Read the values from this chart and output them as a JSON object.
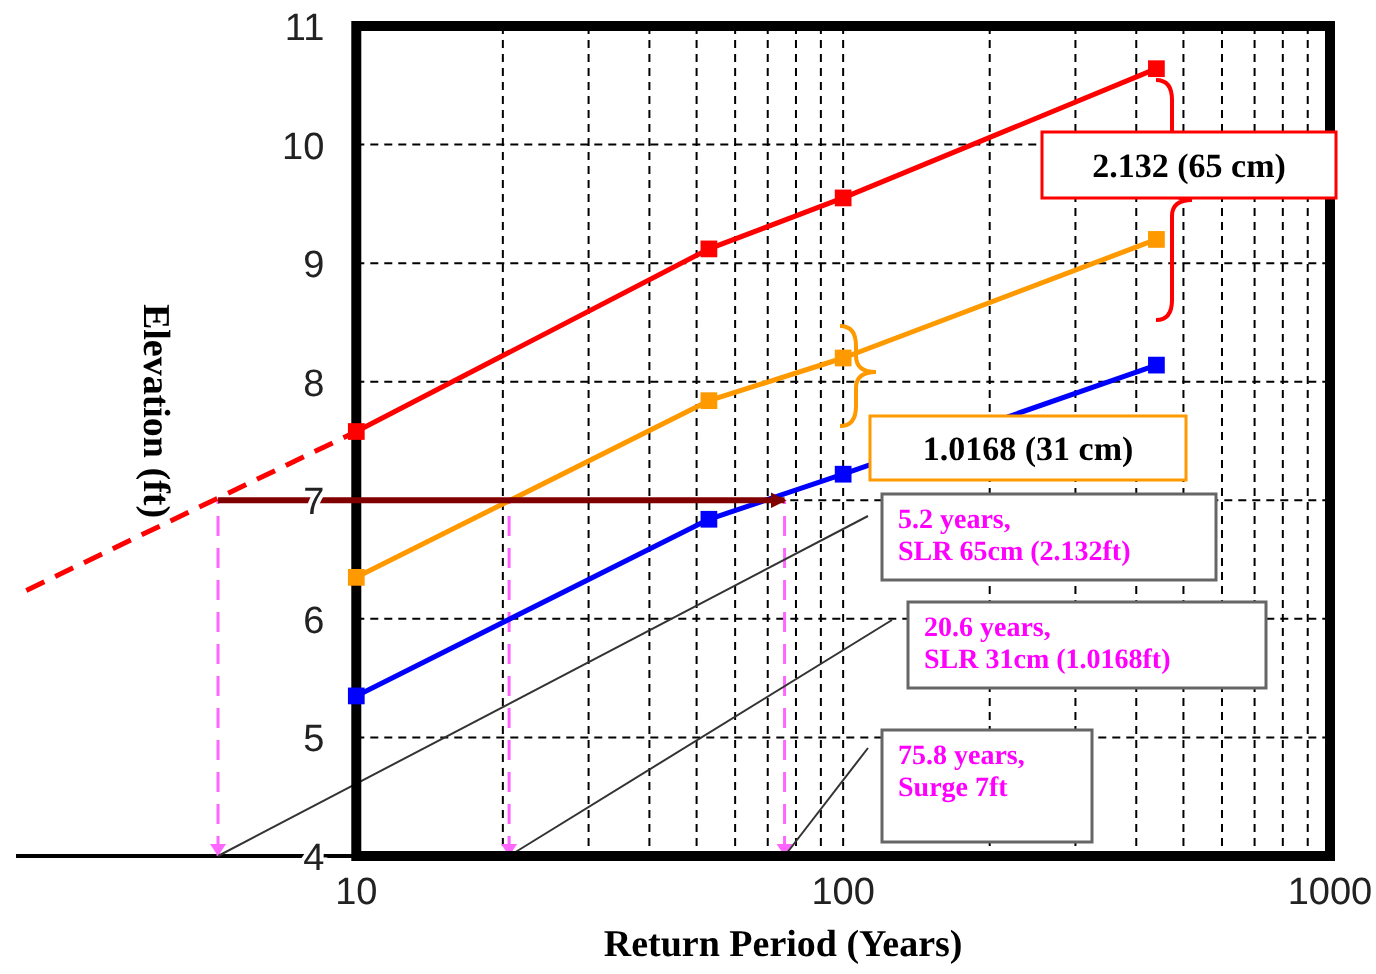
{
  "chart_data": {
    "type": "line",
    "xlabel": "Return Period (Years)",
    "ylabel": "Elevation (ft)",
    "log": "x",
    "xlim": [
      2,
      1000
    ],
    "ylim": [
      4,
      11
    ],
    "xticks": [
      10,
      {
        "value": 20,
        "label": null
      },
      {
        "value": 30,
        "label": null
      },
      {
        "value": 40,
        "label": null
      },
      {
        "value": 50,
        "label": null
      },
      {
        "value": 60,
        "label": null
      },
      {
        "value": 70,
        "label": null
      },
      {
        "value": 80,
        "label": null
      },
      {
        "value": 90,
        "label": null
      },
      100,
      {
        "value": 200,
        "label": null
      },
      {
        "value": 300,
        "label": null
      },
      {
        "value": 400,
        "label": null
      },
      {
        "value": 500,
        "label": null
      },
      {
        "value": 600,
        "label": null
      },
      {
        "value": 700,
        "label": null
      },
      {
        "value": 800,
        "label": null
      },
      {
        "value": 900,
        "label": null
      },
      1000
    ],
    "yticks": [
      4,
      5,
      6,
      7,
      8,
      9,
      10,
      11
    ],
    "grid": true,
    "marker": "square",
    "line_style": "solid",
    "series": [
      {
        "color": "#ff0000",
        "x": [
          10,
          53,
          100,
          440
        ],
        "values": [
          7.58,
          9.12,
          9.55,
          10.64
        ]
      },
      {
        "color": "#ff9900",
        "x": [
          10,
          53,
          100,
          440
        ],
        "values": [
          6.35,
          7.84,
          8.2,
          9.2
        ]
      },
      {
        "color": "#0000ff",
        "x": [
          10,
          53,
          100,
          440
        ],
        "values": [
          5.35,
          6.84,
          7.22,
          8.14
        ]
      },
      {
        "color": "#ff0000",
        "x": [
          2.1,
          10
        ],
        "values": [
          6.24,
          7.58
        ],
        "marker": "none",
        "line_style": "dashed"
      }
    ],
    "ref_lines": [
      {
        "axis": "y",
        "value": 7,
        "color": "#800000"
      },
      {
        "axis": "x",
        "value": 5.2,
        "color": "#ff66ff",
        "line_style": "dashed"
      },
      {
        "axis": "x",
        "value": 20.6,
        "color": "#ff66ff",
        "line_style": "dashed"
      },
      {
        "axis": "x",
        "value": 75.8,
        "color": "#ff66ff",
        "line_style": "dashed"
      }
    ],
    "annotations": [
      "2.132 (65 cm)",
      "1.0168 (31 cm)",
      {
        "text": "5.2 years,\nSLR 65cm (2.132ft)",
        "x": 5.2,
        "y": 4
      },
      {
        "text": "20.6 years,\nSLR 31cm (1.0168ft)",
        "x": 20.6,
        "y": 4
      },
      {
        "text": "75.8 years,\nSurge 7ft",
        "x": 75.8,
        "y": 4
      }
    ]
  }
}
